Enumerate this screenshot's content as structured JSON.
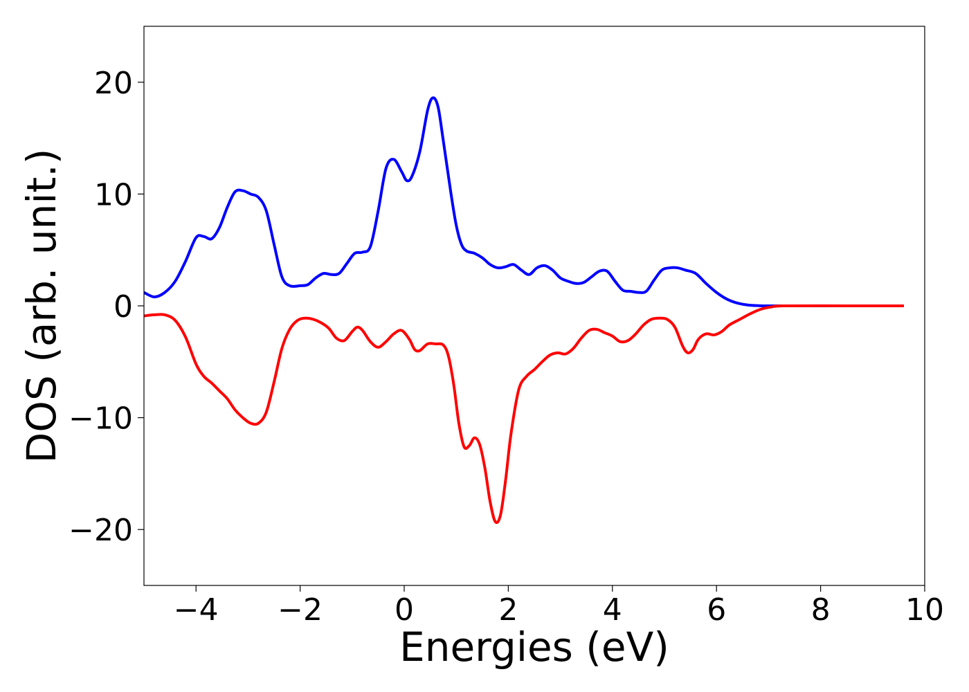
{
  "chart_data": {
    "type": "line",
    "title": "",
    "xlabel": "Energies (eV)",
    "ylabel": "DOS (arb. unit.)",
    "xlim": [
      -5,
      10
    ],
    "ylim": [
      -25,
      25
    ],
    "x_ticks": [
      -4,
      -2,
      0,
      2,
      4,
      6,
      8,
      10
    ],
    "y_ticks": [
      -20,
      -10,
      0,
      10,
      20
    ],
    "x_tick_labels": [
      "−4",
      "−2",
      "0",
      "2",
      "4",
      "6",
      "8",
      "10"
    ],
    "y_tick_labels": [
      "−20",
      "−10",
      "0",
      "10",
      "20"
    ],
    "grid": false,
    "legend": "none",
    "series": [
      {
        "color": "#0000ff",
        "points": [
          [
            -5.0,
            1.2
          ],
          [
            -4.8,
            0.8
          ],
          [
            -4.6,
            1.2
          ],
          [
            -4.4,
            2.2
          ],
          [
            -4.2,
            4.0
          ],
          [
            -4.0,
            6.1
          ],
          [
            -3.85,
            6.2
          ],
          [
            -3.7,
            6.0
          ],
          [
            -3.55,
            7.0
          ],
          [
            -3.4,
            8.8
          ],
          [
            -3.25,
            10.2
          ],
          [
            -3.1,
            10.3
          ],
          [
            -2.95,
            10.0
          ],
          [
            -2.8,
            9.7
          ],
          [
            -2.65,
            8.5
          ],
          [
            -2.5,
            5.5
          ],
          [
            -2.35,
            2.6
          ],
          [
            -2.2,
            1.8
          ],
          [
            -2.0,
            1.8
          ],
          [
            -1.85,
            1.9
          ],
          [
            -1.7,
            2.5
          ],
          [
            -1.55,
            2.9
          ],
          [
            -1.4,
            2.8
          ],
          [
            -1.25,
            2.9
          ],
          [
            -1.1,
            3.8
          ],
          [
            -0.95,
            4.7
          ],
          [
            -0.8,
            4.8
          ],
          [
            -0.65,
            5.3
          ],
          [
            -0.5,
            8.5
          ],
          [
            -0.35,
            12.3
          ],
          [
            -0.2,
            13.1
          ],
          [
            -0.05,
            12.0
          ],
          [
            0.05,
            11.2
          ],
          [
            0.15,
            11.6
          ],
          [
            0.3,
            13.8
          ],
          [
            0.45,
            17.5
          ],
          [
            0.55,
            18.6
          ],
          [
            0.65,
            17.8
          ],
          [
            0.75,
            14.8
          ],
          [
            0.9,
            10.0
          ],
          [
            1.0,
            7.2
          ],
          [
            1.1,
            5.5
          ],
          [
            1.2,
            4.9
          ],
          [
            1.35,
            4.7
          ],
          [
            1.5,
            4.3
          ],
          [
            1.65,
            3.7
          ],
          [
            1.8,
            3.4
          ],
          [
            1.95,
            3.5
          ],
          [
            2.1,
            3.7
          ],
          [
            2.25,
            3.2
          ],
          [
            2.4,
            2.8
          ],
          [
            2.55,
            3.4
          ],
          [
            2.7,
            3.6
          ],
          [
            2.85,
            3.2
          ],
          [
            3.0,
            2.5
          ],
          [
            3.15,
            2.2
          ],
          [
            3.3,
            2.0
          ],
          [
            3.45,
            2.1
          ],
          [
            3.6,
            2.6
          ],
          [
            3.75,
            3.1
          ],
          [
            3.9,
            3.1
          ],
          [
            4.05,
            2.2
          ],
          [
            4.2,
            1.4
          ],
          [
            4.35,
            1.3
          ],
          [
            4.5,
            1.2
          ],
          [
            4.65,
            1.3
          ],
          [
            4.8,
            2.3
          ],
          [
            4.95,
            3.2
          ],
          [
            5.1,
            3.4
          ],
          [
            5.25,
            3.4
          ],
          [
            5.4,
            3.2
          ],
          [
            5.6,
            2.9
          ],
          [
            5.8,
            2.0
          ],
          [
            6.0,
            1.2
          ],
          [
            6.2,
            0.6
          ],
          [
            6.4,
            0.25
          ],
          [
            6.6,
            0.08
          ],
          [
            6.8,
            0.02
          ],
          [
            7.0,
            0.0
          ],
          [
            7.5,
            0.0
          ],
          [
            8.5,
            0.0
          ],
          [
            9.6,
            0.0
          ]
        ]
      },
      {
        "color": "#ff0000",
        "points": [
          [
            -5.0,
            -0.9
          ],
          [
            -4.8,
            -0.8
          ],
          [
            -4.6,
            -0.8
          ],
          [
            -4.4,
            -1.3
          ],
          [
            -4.2,
            -2.8
          ],
          [
            -4.0,
            -5.2
          ],
          [
            -3.85,
            -6.3
          ],
          [
            -3.7,
            -6.9
          ],
          [
            -3.55,
            -7.6
          ],
          [
            -3.4,
            -8.3
          ],
          [
            -3.25,
            -9.3
          ],
          [
            -3.1,
            -10.0
          ],
          [
            -2.95,
            -10.5
          ],
          [
            -2.8,
            -10.5
          ],
          [
            -2.65,
            -9.5
          ],
          [
            -2.5,
            -6.8
          ],
          [
            -2.35,
            -3.8
          ],
          [
            -2.2,
            -2.1
          ],
          [
            -2.05,
            -1.3
          ],
          [
            -1.9,
            -1.1
          ],
          [
            -1.75,
            -1.2
          ],
          [
            -1.6,
            -1.5
          ],
          [
            -1.45,
            -2.0
          ],
          [
            -1.3,
            -2.9
          ],
          [
            -1.15,
            -3.1
          ],
          [
            -1.0,
            -2.3
          ],
          [
            -0.9,
            -1.9
          ],
          [
            -0.8,
            -2.2
          ],
          [
            -0.65,
            -3.2
          ],
          [
            -0.5,
            -3.7
          ],
          [
            -0.35,
            -3.2
          ],
          [
            -0.2,
            -2.5
          ],
          [
            -0.05,
            -2.2
          ],
          [
            0.1,
            -3.0
          ],
          [
            0.2,
            -3.9
          ],
          [
            0.3,
            -4.0
          ],
          [
            0.45,
            -3.4
          ],
          [
            0.6,
            -3.4
          ],
          [
            0.75,
            -3.5
          ],
          [
            0.85,
            -4.5
          ],
          [
            0.95,
            -7.0
          ],
          [
            1.05,
            -10.5
          ],
          [
            1.15,
            -12.6
          ],
          [
            1.25,
            -12.5
          ],
          [
            1.35,
            -11.8
          ],
          [
            1.45,
            -12.4
          ],
          [
            1.55,
            -14.5
          ],
          [
            1.65,
            -17.5
          ],
          [
            1.75,
            -19.3
          ],
          [
            1.85,
            -18.7
          ],
          [
            1.95,
            -15.5
          ],
          [
            2.05,
            -11.5
          ],
          [
            2.2,
            -7.5
          ],
          [
            2.35,
            -6.3
          ],
          [
            2.5,
            -5.7
          ],
          [
            2.65,
            -5.0
          ],
          [
            2.8,
            -4.4
          ],
          [
            2.95,
            -4.2
          ],
          [
            3.1,
            -4.3
          ],
          [
            3.25,
            -3.8
          ],
          [
            3.4,
            -2.9
          ],
          [
            3.55,
            -2.2
          ],
          [
            3.7,
            -2.1
          ],
          [
            3.85,
            -2.4
          ],
          [
            4.0,
            -2.7
          ],
          [
            4.15,
            -3.2
          ],
          [
            4.3,
            -3.1
          ],
          [
            4.45,
            -2.5
          ],
          [
            4.6,
            -1.7
          ],
          [
            4.75,
            -1.2
          ],
          [
            4.9,
            -1.1
          ],
          [
            5.05,
            -1.2
          ],
          [
            5.2,
            -1.9
          ],
          [
            5.35,
            -3.6
          ],
          [
            5.45,
            -4.2
          ],
          [
            5.55,
            -3.9
          ],
          [
            5.65,
            -3.0
          ],
          [
            5.8,
            -2.5
          ],
          [
            5.95,
            -2.6
          ],
          [
            6.1,
            -2.3
          ],
          [
            6.25,
            -1.7
          ],
          [
            6.45,
            -1.2
          ],
          [
            6.65,
            -0.7
          ],
          [
            6.85,
            -0.3
          ],
          [
            7.05,
            -0.1
          ],
          [
            7.3,
            0.0
          ],
          [
            8.5,
            0.0
          ],
          [
            9.6,
            0.0
          ]
        ]
      }
    ]
  }
}
